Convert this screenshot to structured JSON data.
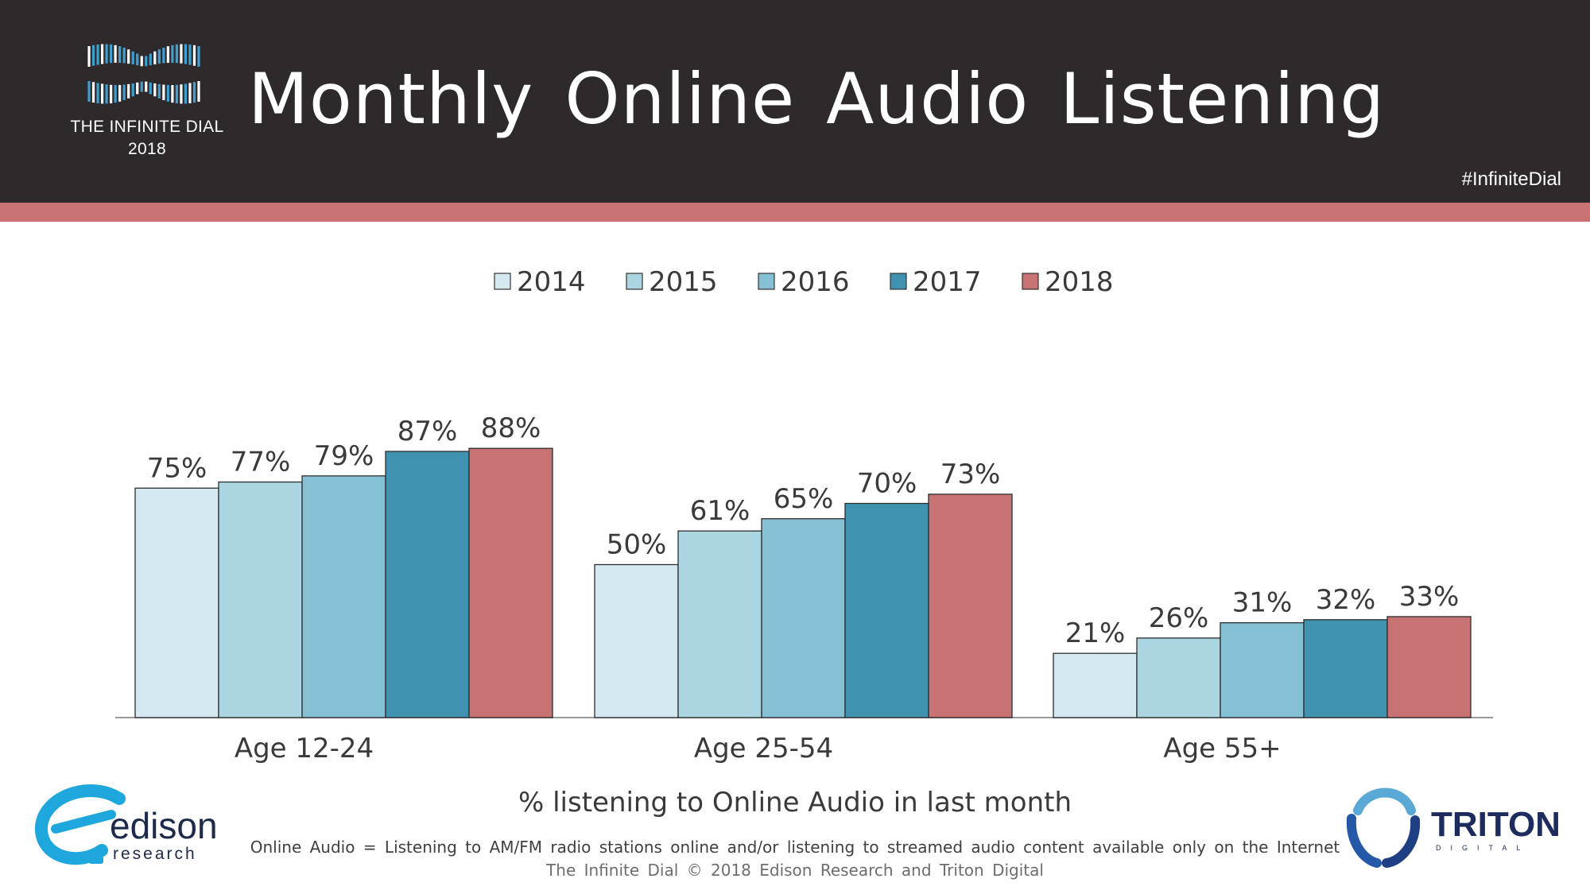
{
  "header": {
    "title": "Monthly Online Audio Listening",
    "brand_line1": "THE INFINITE DIAL",
    "brand_line2": "2018",
    "hashtag": "#InfiniteDial"
  },
  "colors": {
    "header_bg": "#2e2a2b",
    "accent": "#c87373",
    "series": [
      "#d5e9f0",
      "#acd5e2",
      "#86c0d5",
      "#3f93b1",
      "#c87373"
    ]
  },
  "chart_data": {
    "type": "bar",
    "categories": [
      "Age 12-24",
      "Age 25-54",
      "Age 55+"
    ],
    "series": [
      {
        "name": "2014",
        "values": [
          75,
          50,
          21
        ]
      },
      {
        "name": "2015",
        "values": [
          77,
          61,
          26
        ]
      },
      {
        "name": "2016",
        "values": [
          79,
          65,
          31
        ]
      },
      {
        "name": "2017",
        "values": [
          87,
          70,
          32
        ]
      },
      {
        "name": "2018",
        "values": [
          88,
          73,
          33
        ]
      }
    ],
    "value_suffix": "%",
    "ylim": [
      0,
      100
    ],
    "xlabel": "% listening to Online Audio in last month",
    "legend": "top-center",
    "grid": false
  },
  "footer": {
    "caption": "% listening to Online Audio in last month",
    "note": "Online Audio = Listening to AM/FM radio stations online and/or listening to streamed audio content available only on the Internet",
    "copyright": "The Infinite Dial    © 2018 Edison Research and Triton Digital",
    "edison_word": "edison",
    "edison_sub": "research",
    "triton_word": "TRITON",
    "triton_sub": "DIGITAL"
  }
}
